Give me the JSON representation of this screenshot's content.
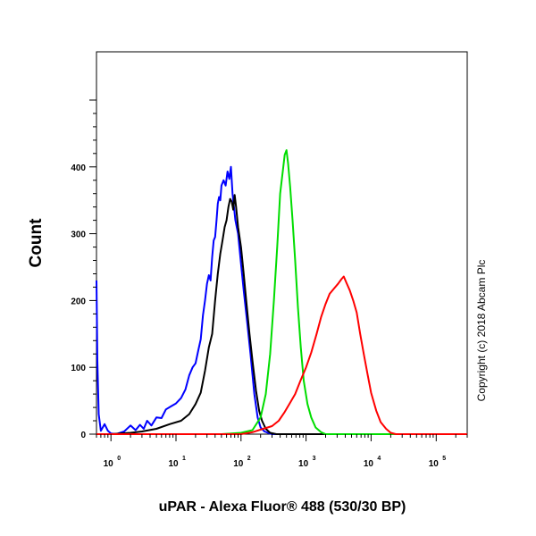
{
  "chart_data": {
    "type": "line",
    "title": "",
    "xlabel": "uPAR - Alexa Fluor® 488 (530/30 BP)",
    "ylabel": "Count",
    "x_scale": "log",
    "xlim": [
      0.6,
      300000
    ],
    "ylim": [
      0,
      500
    ],
    "x_ticks": [
      {
        "value": 1,
        "base": "10",
        "exp": "0"
      },
      {
        "value": 10,
        "base": "10",
        "exp": "1"
      },
      {
        "value": 100,
        "base": "10",
        "exp": "2"
      },
      {
        "value": 1000,
        "base": "10",
        "exp": "3"
      },
      {
        "value": 10000,
        "base": "10",
        "exp": "4"
      },
      {
        "value": 100000,
        "base": "10",
        "exp": "5"
      }
    ],
    "y_ticks": [
      {
        "value": 0,
        "label": "0"
      },
      {
        "value": 100,
        "label": "100"
      },
      {
        "value": 200,
        "label": "200"
      },
      {
        "value": 300,
        "label": "300"
      },
      {
        "value": 400,
        "label": "400"
      }
    ],
    "grid": false,
    "legend": "none",
    "annotation": "Copyright (c) 2018 Abcam Plc",
    "series": [
      {
        "color": "#0000ff",
        "points": [
          [
            0.6,
            230
          ],
          [
            0.62,
            110
          ],
          [
            0.65,
            30
          ],
          [
            0.7,
            5
          ],
          [
            0.8,
            15
          ],
          [
            0.9,
            5
          ],
          [
            1.0,
            1
          ],
          [
            1.2,
            0
          ],
          [
            1.6,
            4
          ],
          [
            2,
            13
          ],
          [
            2.4,
            6
          ],
          [
            2.8,
            14
          ],
          [
            3.2,
            8
          ],
          [
            3.6,
            20
          ],
          [
            4.2,
            13
          ],
          [
            5,
            25
          ],
          [
            6,
            24
          ],
          [
            7,
            37
          ],
          [
            8.5,
            42
          ],
          [
            10,
            46
          ],
          [
            12,
            54
          ],
          [
            14,
            67
          ],
          [
            16,
            88
          ],
          [
            18,
            100
          ],
          [
            20,
            106
          ],
          [
            22,
            125
          ],
          [
            24,
            142
          ],
          [
            26,
            178
          ],
          [
            28,
            200
          ],
          [
            30,
            225
          ],
          [
            32,
            238
          ],
          [
            34,
            230
          ],
          [
            36,
            265
          ],
          [
            38,
            290
          ],
          [
            40,
            295
          ],
          [
            42,
            320
          ],
          [
            44,
            345
          ],
          [
            46,
            355
          ],
          [
            48,
            350
          ],
          [
            50,
            372
          ],
          [
            54,
            380
          ],
          [
            58,
            372
          ],
          [
            62,
            393
          ],
          [
            66,
            382
          ],
          [
            70,
            400
          ],
          [
            74,
            360
          ],
          [
            78,
            340
          ],
          [
            82,
            320
          ],
          [
            90,
            300
          ],
          [
            100,
            255
          ],
          [
            110,
            215
          ],
          [
            125,
            165
          ],
          [
            140,
            120
          ],
          [
            160,
            60
          ],
          [
            180,
            25
          ],
          [
            200,
            10
          ],
          [
            230,
            4
          ],
          [
            260,
            2
          ],
          [
            300,
            0
          ],
          [
            5000,
            0
          ],
          [
            300000,
            0
          ]
        ]
      },
      {
        "color": "#000000",
        "points": [
          [
            0.6,
            0
          ],
          [
            1,
            0
          ],
          [
            2,
            2
          ],
          [
            3,
            4
          ],
          [
            5,
            8
          ],
          [
            8,
            15
          ],
          [
            12,
            20
          ],
          [
            16,
            30
          ],
          [
            20,
            45
          ],
          [
            24,
            62
          ],
          [
            28,
            95
          ],
          [
            32,
            130
          ],
          [
            36,
            150
          ],
          [
            40,
            200
          ],
          [
            44,
            240
          ],
          [
            48,
            270
          ],
          [
            52,
            290
          ],
          [
            56,
            310
          ],
          [
            60,
            320
          ],
          [
            64,
            340
          ],
          [
            68,
            352
          ],
          [
            72,
            348
          ],
          [
            76,
            336
          ],
          [
            80,
            358
          ],
          [
            84,
            340
          ],
          [
            90,
            310
          ],
          [
            100,
            280
          ],
          [
            110,
            240
          ],
          [
            120,
            200
          ],
          [
            135,
            150
          ],
          [
            150,
            110
          ],
          [
            170,
            65
          ],
          [
            190,
            35
          ],
          [
            210,
            20
          ],
          [
            240,
            8
          ],
          [
            280,
            2
          ],
          [
            350,
            0
          ],
          [
            300000,
            0
          ]
        ]
      },
      {
        "color": "#00dd00",
        "points": [
          [
            0.6,
            0
          ],
          [
            50,
            0
          ],
          [
            100,
            2
          ],
          [
            150,
            6
          ],
          [
            200,
            25
          ],
          [
            240,
            60
          ],
          [
            280,
            120
          ],
          [
            320,
            200
          ],
          [
            360,
            280
          ],
          [
            400,
            360
          ],
          [
            440,
            395
          ],
          [
            470,
            418
          ],
          [
            500,
            425
          ],
          [
            530,
            405
          ],
          [
            570,
            370
          ],
          [
            620,
            320
          ],
          [
            680,
            260
          ],
          [
            750,
            190
          ],
          [
            830,
            130
          ],
          [
            920,
            80
          ],
          [
            1050,
            45
          ],
          [
            1200,
            25
          ],
          [
            1400,
            10
          ],
          [
            1700,
            3
          ],
          [
            2000,
            0
          ],
          [
            300000,
            0
          ]
        ]
      },
      {
        "color": "#ff0000",
        "points": [
          [
            0.6,
            0
          ],
          [
            100,
            0
          ],
          [
            150,
            3
          ],
          [
            220,
            8
          ],
          [
            300,
            12
          ],
          [
            380,
            20
          ],
          [
            460,
            32
          ],
          [
            560,
            46
          ],
          [
            680,
            60
          ],
          [
            820,
            80
          ],
          [
            1000,
            100
          ],
          [
            1200,
            122
          ],
          [
            1450,
            150
          ],
          [
            1700,
            175
          ],
          [
            2000,
            195
          ],
          [
            2300,
            210
          ],
          [
            2700,
            218
          ],
          [
            3100,
            225
          ],
          [
            3500,
            232
          ],
          [
            3800,
            236
          ],
          [
            4200,
            226
          ],
          [
            4700,
            215
          ],
          [
            5300,
            200
          ],
          [
            6000,
            182
          ],
          [
            6800,
            150
          ],
          [
            7700,
            120
          ],
          [
            8800,
            90
          ],
          [
            10000,
            62
          ],
          [
            12000,
            35
          ],
          [
            14000,
            18
          ],
          [
            17000,
            8
          ],
          [
            20000,
            2
          ],
          [
            24000,
            0
          ],
          [
            300000,
            0
          ]
        ]
      }
    ]
  }
}
